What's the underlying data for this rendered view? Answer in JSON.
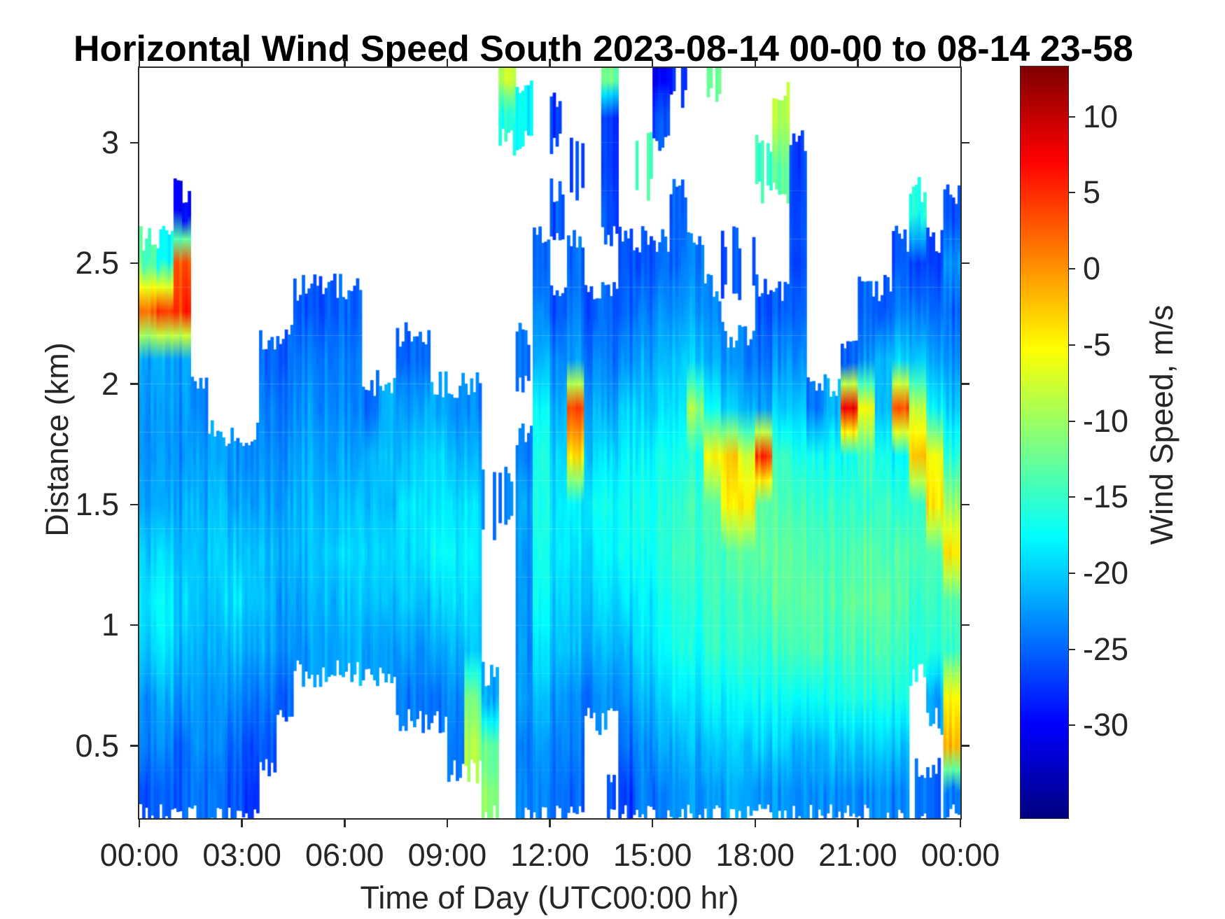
{
  "title": "Horizontal Wind Speed South 2023-08-14 00-00 to 08-14 23-58",
  "axes": {
    "xlabel": "Time of Day (UTC00:00 hr)",
    "ylabel": "Distance (km)",
    "x_tick_labels": [
      "00:00",
      "03:00",
      "06:00",
      "09:00",
      "12:00",
      "15:00",
      "18:00",
      "21:00",
      "00:00"
    ],
    "x_tick_hours": [
      0,
      3,
      6,
      9,
      12,
      15,
      18,
      21,
      24
    ],
    "y_tick_labels": [
      "0.5",
      "1",
      "1.5",
      "2",
      "2.5",
      "3"
    ],
    "y_tick_values": [
      0.5,
      1,
      1.5,
      2,
      2.5,
      3
    ],
    "x_range_hours": [
      0,
      24
    ],
    "y_range_km": [
      0.2,
      3.31
    ]
  },
  "colorbar": {
    "label": "Wind Speed, m/s",
    "ticks": [
      10,
      5,
      0,
      -5,
      -10,
      -15,
      -20,
      -25,
      -30
    ],
    "vmin": -36.1,
    "vmax": 13.3,
    "colormap": "jet"
  },
  "style": {
    "background": "#ffffff",
    "axis_color": "#2b2b2b",
    "text_color": "#262626",
    "no_data_color": "#ffffff"
  },
  "chart_data": {
    "type": "heatmap",
    "title": "Horizontal Wind Speed South 2023-08-14 00-00 to 08-14 23-58",
    "xlabel": "Time of Day (UTC00:00 hr)",
    "ylabel": "Distance (km)",
    "value_units": "m/s",
    "x_hours": {
      "start": 0,
      "step": 0.5,
      "count": 48
    },
    "heights_km": [
      0.3,
      0.5,
      0.7,
      0.9,
      1.1,
      1.3,
      1.5,
      1.7,
      1.9,
      2.1,
      2.3,
      2.5,
      2.7,
      2.9,
      3.1,
      3.3
    ],
    "grid": [
      [
        -26,
        -26,
        -26,
        -25,
        -25,
        -26,
        -27,
        null,
        null,
        null,
        null,
        null,
        null,
        null,
        null,
        null,
        null,
        null,
        null,
        null,
        -11,
        null,
        -24,
        -24,
        -25,
        -25,
        null,
        -25,
        -27,
        -24,
        -24,
        -23,
        -23,
        -23,
        -22,
        -22,
        -23,
        -23,
        -23,
        -23,
        -23,
        -23,
        -23,
        -23,
        -24,
        -24,
        -25,
        -24
      ],
      [
        -24,
        -24,
        -25,
        -24,
        -24,
        -25,
        -26,
        -26,
        null,
        null,
        null,
        null,
        null,
        null,
        null,
        null,
        null,
        null,
        -24,
        -9,
        -13,
        null,
        -24,
        -23,
        -24,
        -24,
        null,
        null,
        -25,
        -23,
        -22,
        -22,
        -21,
        -21,
        -20,
        -20,
        -20,
        -20,
        -21,
        -21,
        -20,
        -20,
        -20,
        -20,
        -21,
        null,
        null,
        -2
      ],
      [
        -23,
        -22,
        -23,
        -23,
        -23,
        -23,
        -24,
        -24,
        -25,
        null,
        null,
        null,
        null,
        null,
        null,
        -24,
        -24,
        -25,
        -23,
        -12,
        -22,
        null,
        -23,
        -21,
        -23,
        -23,
        -24,
        -23,
        -23,
        -21,
        -20,
        -19,
        -19,
        -18,
        -18,
        -17,
        -17,
        -17,
        -17,
        -17,
        -17,
        -16,
        -16,
        -16,
        -17,
        null,
        -22,
        -5
      ],
      [
        -20,
        -19,
        -21,
        -22,
        -22,
        -21,
        -22,
        -22,
        -23,
        -23,
        -22,
        -22,
        -21,
        -22,
        -23,
        -22,
        -23,
        -22,
        -21,
        -20,
        null,
        null,
        -23,
        -19,
        -21,
        -21,
        -22,
        -21,
        -21,
        -19,
        -18,
        -17,
        -17,
        -16,
        -16,
        -15,
        -15,
        -15,
        -14,
        -14,
        -15,
        -14,
        -14,
        -14,
        -15,
        -16,
        -16,
        -15
      ],
      [
        -19,
        -18,
        -20,
        -21,
        -21,
        -19,
        -20,
        -21,
        -22,
        -22,
        -21,
        -21,
        -20,
        -20,
        -21,
        -20,
        -21,
        -20,
        -19,
        -19,
        null,
        null,
        -23,
        -18,
        -20,
        -20,
        -20,
        -19,
        -19,
        -18,
        -17,
        -16,
        -16,
        -15,
        -15,
        -14,
        -14,
        -13,
        -13,
        -13,
        -14,
        -13,
        -13,
        -13,
        -14,
        -15,
        -15,
        -14
      ],
      [
        -20,
        -20,
        -21,
        -21,
        -20,
        -20,
        -20,
        -21,
        -21,
        -21,
        -20,
        -20,
        -19,
        -19,
        -20,
        -19,
        -19,
        -18,
        -18,
        -18,
        null,
        null,
        -23,
        -17,
        -19,
        -19,
        -19,
        -18,
        -17,
        -17,
        -16,
        -15,
        -15,
        -15,
        -14,
        -13,
        -13,
        -13,
        -13,
        -14,
        -14,
        -14,
        -13,
        -14,
        -14,
        -14,
        -14,
        -4
      ],
      [
        -22,
        -22,
        -22,
        -22,
        -21,
        -22,
        -22,
        -22,
        -22,
        -21,
        -21,
        -21,
        -20,
        -20,
        -21,
        -19,
        -19,
        -19,
        -19,
        -19,
        -23,
        -24,
        -22,
        -17,
        -19,
        -18,
        -18,
        -17,
        -17,
        -16,
        -16,
        -16,
        -15,
        -14,
        -5,
        -4,
        -13,
        -14,
        -14,
        -15,
        -15,
        -15,
        -15,
        -15,
        -16,
        -15,
        -4,
        -10
      ],
      [
        -23,
        -23,
        -23,
        -23,
        -22,
        -23,
        -23,
        -23,
        -23,
        -22,
        -22,
        -22,
        -22,
        -21,
        -21,
        -21,
        -20,
        -20,
        -21,
        -21,
        null,
        null,
        -24,
        -17,
        -20,
        -4,
        -20,
        -19,
        -18,
        -18,
        -17,
        -17,
        -16,
        -6,
        -3,
        -7,
        5,
        -15,
        -16,
        -17,
        -17,
        -17,
        -14,
        -17,
        -18,
        -2,
        -6,
        -16
      ],
      [
        -23,
        -23,
        -23,
        -24,
        null,
        null,
        null,
        -24,
        -24,
        -23,
        -23,
        -23,
        -23,
        -24,
        -22,
        -22,
        -22,
        -22,
        -23,
        -23,
        null,
        null,
        null,
        -18,
        -22,
        4,
        -22,
        -22,
        -20,
        -20,
        -19,
        -19,
        -10,
        -18,
        -20,
        -21,
        -22,
        -20,
        -20,
        -24,
        -21,
        8,
        -5,
        -21,
        3,
        -8,
        -18,
        -20
      ],
      [
        -22,
        -22,
        -22,
        null,
        null,
        null,
        null,
        -25,
        -25,
        -24,
        -24,
        -24,
        -24,
        null,
        null,
        -25,
        -25,
        null,
        null,
        null,
        null,
        null,
        -25,
        -22,
        -24,
        -22,
        -24,
        -24,
        -23,
        -22,
        -21,
        -21,
        -20,
        -22,
        -23,
        -24,
        -24,
        -23,
        -23,
        null,
        null,
        -25,
        -23,
        -21,
        -20,
        -20,
        -22,
        -23
      ],
      [
        2,
        4,
        5,
        null,
        null,
        null,
        null,
        null,
        null,
        -26,
        -26,
        -25,
        -25,
        null,
        null,
        null,
        null,
        null,
        null,
        null,
        null,
        null,
        null,
        -24,
        -26,
        -24,
        -26,
        -25,
        -25,
        -24,
        -23,
        -23,
        -22,
        -24,
        null,
        null,
        -26,
        -25,
        -25,
        null,
        null,
        null,
        -25,
        -26,
        -24,
        -24,
        -25,
        -25
      ],
      [
        -14,
        -18,
        3,
        null,
        null,
        null,
        null,
        null,
        null,
        null,
        null,
        null,
        null,
        null,
        null,
        null,
        null,
        null,
        null,
        null,
        null,
        null,
        null,
        -26,
        null,
        -25,
        null,
        null,
        -26,
        -26,
        -25,
        -25,
        -24,
        null,
        -26,
        -27,
        null,
        null,
        -26,
        null,
        null,
        null,
        null,
        null,
        -26,
        -27,
        -27,
        -23
      ],
      [
        null,
        null,
        -30,
        null,
        null,
        null,
        null,
        null,
        null,
        null,
        null,
        null,
        null,
        null,
        null,
        null,
        null,
        null,
        null,
        null,
        null,
        null,
        null,
        null,
        -26,
        null,
        null,
        -26,
        null,
        null,
        null,
        -26,
        null,
        null,
        null,
        null,
        null,
        null,
        -26,
        null,
        null,
        null,
        null,
        null,
        null,
        -16,
        null,
        -26
      ],
      [
        null,
        null,
        null,
        null,
        null,
        null,
        null,
        null,
        null,
        null,
        null,
        null,
        null,
        null,
        null,
        null,
        null,
        null,
        null,
        null,
        null,
        null,
        null,
        null,
        null,
        -26,
        null,
        -27,
        null,
        -14,
        null,
        null,
        null,
        null,
        null,
        null,
        -15,
        -13,
        -27,
        null,
        null,
        null,
        null,
        null,
        null,
        null,
        null,
        null
      ],
      [
        null,
        null,
        null,
        null,
        null,
        null,
        null,
        null,
        null,
        null,
        null,
        null,
        null,
        null,
        null,
        null,
        null,
        null,
        null,
        null,
        null,
        -16,
        -18,
        null,
        -27,
        null,
        null,
        -27,
        null,
        null,
        -26,
        null,
        null,
        null,
        null,
        null,
        null,
        -9,
        null,
        null,
        null,
        null,
        null,
        null,
        null,
        null,
        null,
        null
      ],
      [
        null,
        null,
        null,
        null,
        null,
        null,
        null,
        null,
        null,
        null,
        null,
        null,
        null,
        null,
        null,
        null,
        null,
        null,
        null,
        null,
        null,
        -8,
        null,
        null,
        null,
        null,
        null,
        -12,
        null,
        null,
        -30,
        -28,
        null,
        -13,
        null,
        null,
        null,
        null,
        null,
        null,
        null,
        null,
        null,
        null,
        null,
        null,
        null,
        null
      ]
    ]
  }
}
